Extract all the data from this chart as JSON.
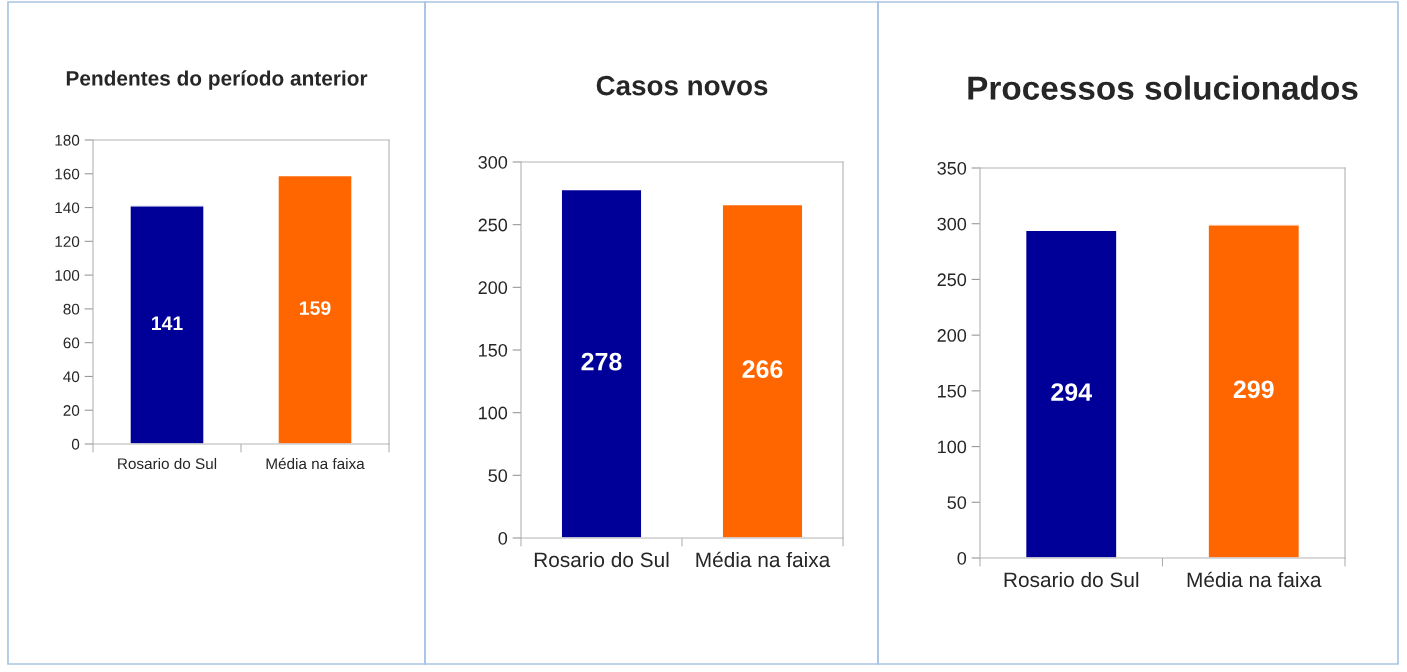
{
  "chart_data": [
    {
      "type": "bar",
      "title": "Pendentes do período anterior",
      "categories": [
        "Rosario do Sul",
        "Média na faixa"
      ],
      "values": [
        141,
        159
      ],
      "colors": [
        "#000099",
        "#ff6600"
      ],
      "ylim": [
        0,
        180
      ],
      "yticks": [
        0,
        20,
        40,
        60,
        80,
        100,
        120,
        140,
        160,
        180
      ],
      "data_labels": true,
      "grid": false,
      "legend": false
    },
    {
      "type": "bar",
      "title": "Casos novos",
      "categories": [
        "Rosario do Sul",
        "Média na faixa"
      ],
      "values": [
        278,
        266
      ],
      "colors": [
        "#000099",
        "#ff6600"
      ],
      "ylim": [
        0,
        300
      ],
      "yticks": [
        0,
        50,
        100,
        150,
        200,
        250,
        300
      ],
      "data_labels": true,
      "grid": false,
      "legend": false
    },
    {
      "type": "bar",
      "title": "Processos solucionados",
      "categories": [
        "Rosario do Sul",
        "Média na faixa"
      ],
      "values": [
        294,
        299
      ],
      "colors": [
        "#000099",
        "#ff6600"
      ],
      "ylim": [
        0,
        350
      ],
      "yticks": [
        0,
        50,
        100,
        150,
        200,
        250,
        300,
        350
      ],
      "data_labels": true,
      "grid": false,
      "legend": false
    }
  ]
}
